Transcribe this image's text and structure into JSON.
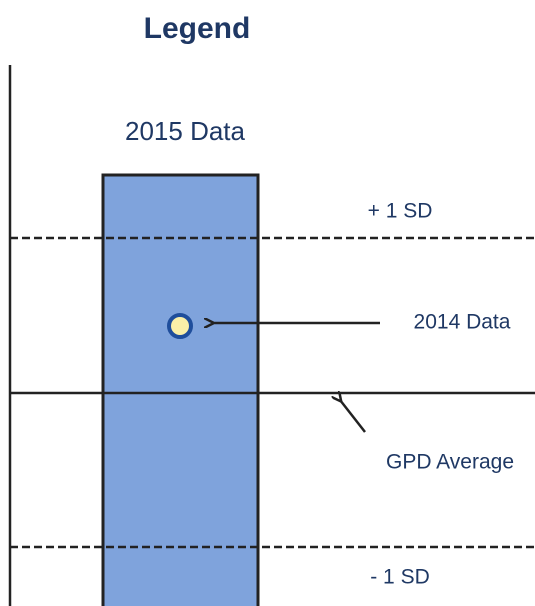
{
  "title": "Legend",
  "bar_label": "2015 Data",
  "labels": {
    "plus_sd": "+ 1 SD",
    "point": "2014 Data",
    "average": "GPD Average",
    "minus_sd": "- 1 SD"
  }
}
